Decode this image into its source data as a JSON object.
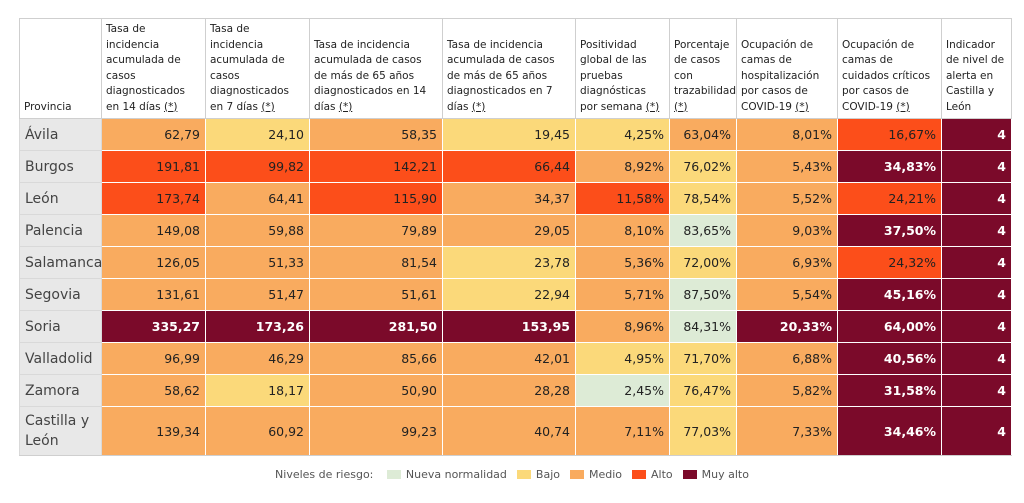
{
  "header": {
    "columns": [
      {
        "text": "Provincia",
        "star": false
      },
      {
        "text": "Tasa de incidencia acumulada de casos diagnosticados en 14 días",
        "star": true
      },
      {
        "text": "Tasa de incidencia acumulada de casos diagnosticados en 7 días",
        "star": true
      },
      {
        "text": "Tasa de incidencia acumulada de casos de más de 65 años diagnosticados en 14 días",
        "star": true
      },
      {
        "text": "Tasa de incidencia acumulada de casos de más de 65 años diagnosticados en 7 días",
        "star": true
      },
      {
        "text": "Positividad global de las pruebas diagnósticas por semana",
        "star": true
      },
      {
        "text": "Porcentaje de casos con trazabilidad",
        "star": true
      },
      {
        "text": "Ocupación de camas de hospitalización por casos de COVID-19",
        "star": true
      },
      {
        "text": "Ocupación de camas de cuidados críticos por casos de COVID-19",
        "star": true
      },
      {
        "text": "Indicador de nivel de alerta en Castilla y León",
        "star": false
      }
    ],
    "star_label": "(*)"
  },
  "colors": {
    "nueva": "#ddebd6",
    "bajo": "#fbd97a",
    "medio": "#f9ab5f",
    "alto": "#fc4e1a",
    "muy_alto": "#7b0a2a"
  },
  "rows": [
    {
      "name": "Ávila",
      "cells": [
        {
          "v": "62,79",
          "l": "medio"
        },
        {
          "v": "24,10",
          "l": "bajo"
        },
        {
          "v": "58,35",
          "l": "medio"
        },
        {
          "v": "19,45",
          "l": "bajo"
        },
        {
          "v": "4,25%",
          "l": "bajo"
        },
        {
          "v": "63,04%",
          "l": "medio"
        },
        {
          "v": "8,01%",
          "l": "medio"
        },
        {
          "v": "16,67%",
          "l": "alto"
        },
        {
          "v": "4",
          "l": "muy_alto"
        }
      ]
    },
    {
      "name": "Burgos",
      "cells": [
        {
          "v": "191,81",
          "l": "alto"
        },
        {
          "v": "99,82",
          "l": "alto"
        },
        {
          "v": "142,21",
          "l": "alto"
        },
        {
          "v": "66,44",
          "l": "alto"
        },
        {
          "v": "8,92%",
          "l": "medio"
        },
        {
          "v": "76,02%",
          "l": "bajo"
        },
        {
          "v": "5,43%",
          "l": "medio"
        },
        {
          "v": "34,83%",
          "l": "muy_alto"
        },
        {
          "v": "4",
          "l": "muy_alto"
        }
      ]
    },
    {
      "name": "León",
      "cells": [
        {
          "v": "173,74",
          "l": "alto"
        },
        {
          "v": "64,41",
          "l": "medio"
        },
        {
          "v": "115,90",
          "l": "alto"
        },
        {
          "v": "34,37",
          "l": "medio"
        },
        {
          "v": "11,58%",
          "l": "alto"
        },
        {
          "v": "78,54%",
          "l": "bajo"
        },
        {
          "v": "5,52%",
          "l": "medio"
        },
        {
          "v": "24,21%",
          "l": "alto"
        },
        {
          "v": "4",
          "l": "muy_alto"
        }
      ]
    },
    {
      "name": "Palencia",
      "cells": [
        {
          "v": "149,08",
          "l": "medio"
        },
        {
          "v": "59,88",
          "l": "medio"
        },
        {
          "v": "79,89",
          "l": "medio"
        },
        {
          "v": "29,05",
          "l": "medio"
        },
        {
          "v": "8,10%",
          "l": "medio"
        },
        {
          "v": "83,65%",
          "l": "nueva"
        },
        {
          "v": "9,03%",
          "l": "medio"
        },
        {
          "v": "37,50%",
          "l": "muy_alto"
        },
        {
          "v": "4",
          "l": "muy_alto"
        }
      ]
    },
    {
      "name": "Salamanca",
      "cells": [
        {
          "v": "126,05",
          "l": "medio"
        },
        {
          "v": "51,33",
          "l": "medio"
        },
        {
          "v": "81,54",
          "l": "medio"
        },
        {
          "v": "23,78",
          "l": "bajo"
        },
        {
          "v": "5,36%",
          "l": "medio"
        },
        {
          "v": "72,00%",
          "l": "bajo"
        },
        {
          "v": "6,93%",
          "l": "medio"
        },
        {
          "v": "24,32%",
          "l": "alto"
        },
        {
          "v": "4",
          "l": "muy_alto"
        }
      ]
    },
    {
      "name": "Segovia",
      "cells": [
        {
          "v": "131,61",
          "l": "medio"
        },
        {
          "v": "51,47",
          "l": "medio"
        },
        {
          "v": "51,61",
          "l": "medio"
        },
        {
          "v": "22,94",
          "l": "bajo"
        },
        {
          "v": "5,71%",
          "l": "medio"
        },
        {
          "v": "87,50%",
          "l": "nueva"
        },
        {
          "v": "5,54%",
          "l": "medio"
        },
        {
          "v": "45,16%",
          "l": "muy_alto"
        },
        {
          "v": "4",
          "l": "muy_alto"
        }
      ]
    },
    {
      "name": "Soria",
      "cells": [
        {
          "v": "335,27",
          "l": "muy_alto"
        },
        {
          "v": "173,26",
          "l": "muy_alto"
        },
        {
          "v": "281,50",
          "l": "muy_alto"
        },
        {
          "v": "153,95",
          "l": "muy_alto"
        },
        {
          "v": "8,96%",
          "l": "medio"
        },
        {
          "v": "84,31%",
          "l": "nueva"
        },
        {
          "v": "20,33%",
          "l": "muy_alto"
        },
        {
          "v": "64,00%",
          "l": "muy_alto"
        },
        {
          "v": "4",
          "l": "muy_alto"
        }
      ]
    },
    {
      "name": "Valladolid",
      "cells": [
        {
          "v": "96,99",
          "l": "medio"
        },
        {
          "v": "46,29",
          "l": "medio"
        },
        {
          "v": "85,66",
          "l": "medio"
        },
        {
          "v": "42,01",
          "l": "medio"
        },
        {
          "v": "4,95%",
          "l": "bajo"
        },
        {
          "v": "71,70%",
          "l": "bajo"
        },
        {
          "v": "6,88%",
          "l": "medio"
        },
        {
          "v": "40,56%",
          "l": "muy_alto"
        },
        {
          "v": "4",
          "l": "muy_alto"
        }
      ]
    },
    {
      "name": "Zamora",
      "cells": [
        {
          "v": "58,62",
          "l": "medio"
        },
        {
          "v": "18,17",
          "l": "bajo"
        },
        {
          "v": "50,90",
          "l": "medio"
        },
        {
          "v": "28,28",
          "l": "medio"
        },
        {
          "v": "2,45%",
          "l": "nueva"
        },
        {
          "v": "76,47%",
          "l": "bajo"
        },
        {
          "v": "5,82%",
          "l": "medio"
        },
        {
          "v": "31,58%",
          "l": "muy_alto"
        },
        {
          "v": "4",
          "l": "muy_alto"
        }
      ]
    },
    {
      "name": "Castilla y León",
      "cells": [
        {
          "v": "139,34",
          "l": "medio"
        },
        {
          "v": "60,92",
          "l": "medio"
        },
        {
          "v": "99,23",
          "l": "medio"
        },
        {
          "v": "40,74",
          "l": "medio"
        },
        {
          "v": "7,11%",
          "l": "medio"
        },
        {
          "v": "77,03%",
          "l": "bajo"
        },
        {
          "v": "7,33%",
          "l": "medio"
        },
        {
          "v": "34,46%",
          "l": "muy_alto"
        },
        {
          "v": "4",
          "l": "muy_alto"
        }
      ]
    }
  ],
  "legend": {
    "label": "Niveles de riesgo:",
    "items": [
      {
        "key": "nueva",
        "label": "Nueva normalidad"
      },
      {
        "key": "bajo",
        "label": "Bajo"
      },
      {
        "key": "medio",
        "label": "Medio"
      },
      {
        "key": "alto",
        "label": "Alto"
      },
      {
        "key": "muy_alto",
        "label": "Muy alto"
      }
    ]
  }
}
